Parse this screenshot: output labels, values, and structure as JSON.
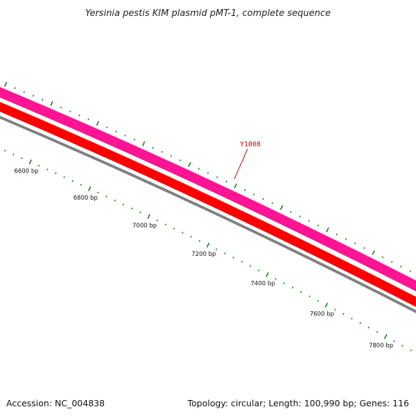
{
  "title": "Yersinia pestis KIM plasmid pMT-1, complete sequence",
  "accession": "Accession: NC_004838",
  "summary": "Topology: circular; Length: 100,990 bp; Genes: 116",
  "gene_label": "Y1008",
  "tick_labels": [
    "6600 bp",
    "6800 bp",
    "7000 bp",
    "7200 bp",
    "7400 bp",
    "7600 bp",
    "7800 bp"
  ],
  "colors": {
    "outer_track": "#ff1493",
    "inner_track": "#ff0000",
    "backbone": "#808080",
    "ticks": "#1a7a1a",
    "gene_label": "#d40000"
  }
}
